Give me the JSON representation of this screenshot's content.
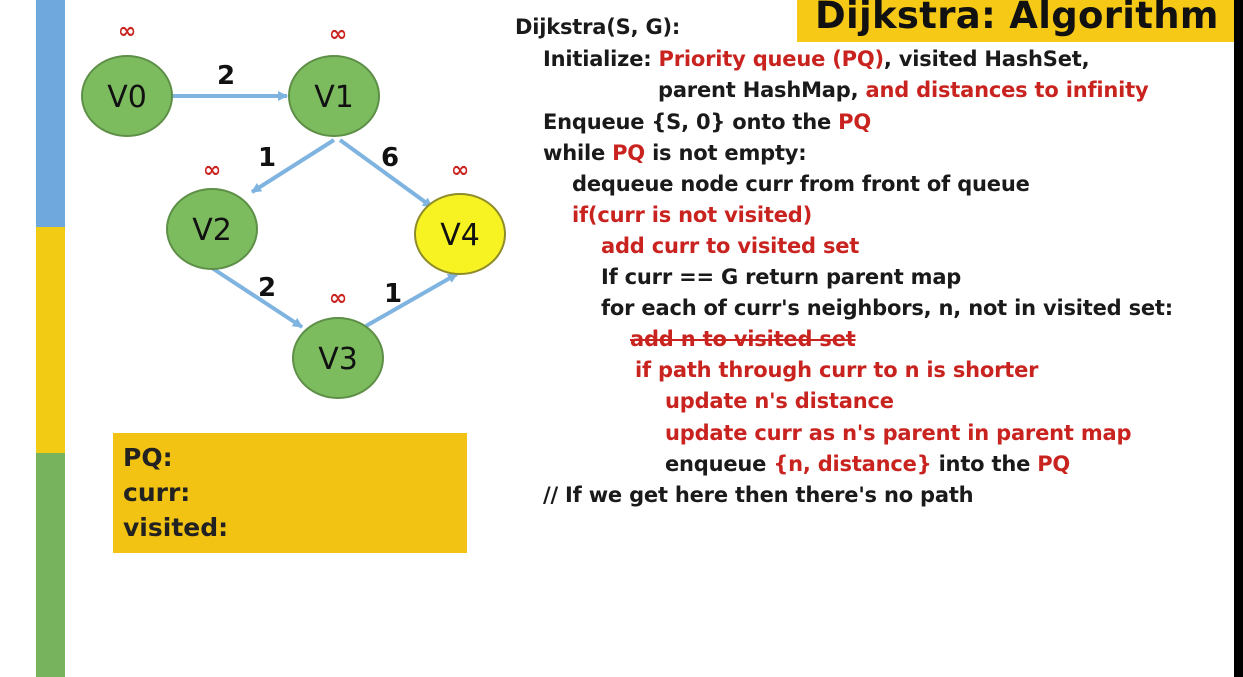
{
  "title": "Dijkstra: Algorithm",
  "graph": {
    "nodes": [
      {
        "id": "V0",
        "label": "V0",
        "distance_label": "∞",
        "color": "#7cbc5f"
      },
      {
        "id": "V1",
        "label": "V1",
        "distance_label": "∞",
        "color": "#7cbc5f"
      },
      {
        "id": "V2",
        "label": "V2",
        "distance_label": "∞",
        "color": "#7cbc5f"
      },
      {
        "id": "V3",
        "label": "V3",
        "distance_label": "∞",
        "color": "#7cbc5f"
      },
      {
        "id": "V4",
        "label": "V4",
        "distance_label": "∞",
        "color": "#f7f322"
      }
    ],
    "edges": [
      {
        "from": "V0",
        "to": "V1",
        "weight": "2"
      },
      {
        "from": "V1",
        "to": "V2",
        "weight": "1"
      },
      {
        "from": "V1",
        "to": "V4",
        "weight": "6"
      },
      {
        "from": "V2",
        "to": "V3",
        "weight": "2"
      },
      {
        "from": "V3",
        "to": "V4",
        "weight": "1"
      }
    ],
    "edge_color": "#7fb3e0",
    "distance_color": "#c9231f"
  },
  "state": {
    "pq_label": "PQ:",
    "curr_label": "curr:",
    "visited_label": "visited:"
  },
  "code": {
    "l01": {
      "a": "Dijkstra(S, G):"
    },
    "l02": {
      "a": "Initialize: ",
      "b": "Priority queue (PQ)",
      "c": ", visited HashSet,"
    },
    "l03": {
      "a": "parent HashMap, ",
      "b": "and distances to infinity"
    },
    "l04": {
      "a": "Enqueue {S, 0} onto the ",
      "b": "PQ"
    },
    "l05": {
      "a": "while ",
      "b": "PQ",
      "c": " is not empty:"
    },
    "l06": {
      "a": "dequeue node curr from front of queue"
    },
    "l07": {
      "a": "if(curr is not visited)"
    },
    "l08": {
      "a": "add curr to visited set"
    },
    "l09": {
      "a": "If curr == G return parent map"
    },
    "l10": {
      "a": "for each of curr's neighbors, n, not in visited set:"
    },
    "l11": {
      "a": "add n to visited set"
    },
    "l12": {
      "a": "if path through curr to n is shorter"
    },
    "l13": {
      "a": "update n's distance"
    },
    "l14": {
      "a": "update curr as n's parent in parent map"
    },
    "l15": {
      "a": "enqueue ",
      "b": "{n, distance}",
      "c": " into the ",
      "d": "PQ"
    },
    "l16": {
      "a": "// If we get here then there's no path"
    }
  }
}
